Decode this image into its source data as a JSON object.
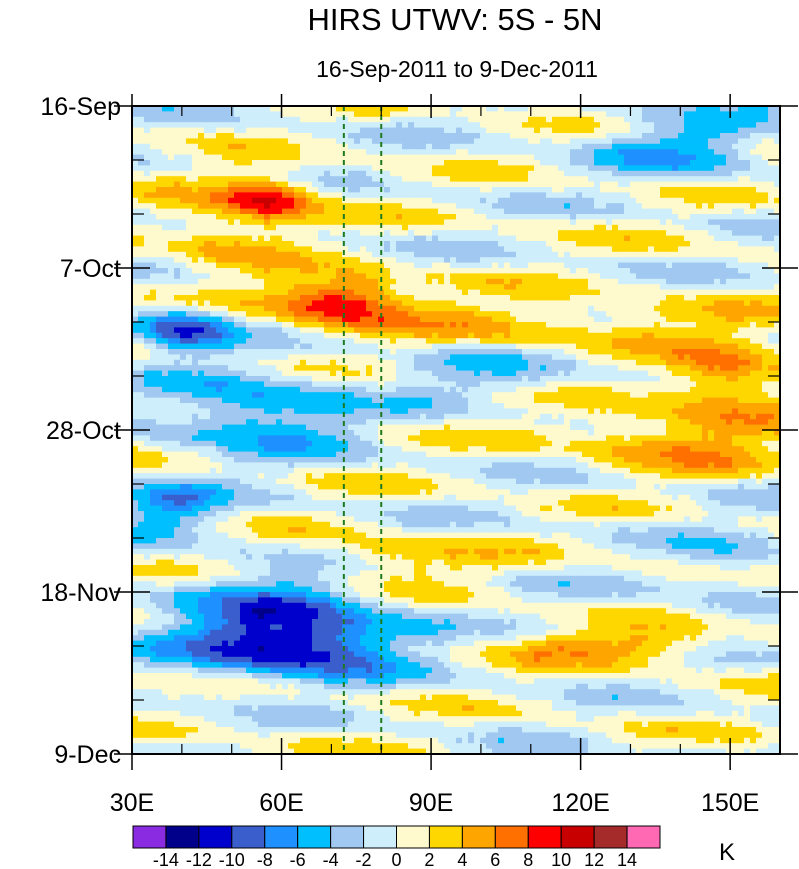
{
  "chart_data": {
    "type": "heatmap",
    "title": "HIRS UTWV: 5S - 5N",
    "subtitle": "16-Sep-2011 to 9-Dec-2011",
    "x_axis": {
      "range": [
        30,
        160
      ],
      "ticks": [
        30,
        60,
        90,
        120,
        150
      ],
      "tick_labels": [
        "30E",
        "60E",
        "90E",
        "120E",
        "150E"
      ]
    },
    "y_axis": {
      "range_days": [
        0,
        84
      ],
      "ticks_days": [
        0,
        21,
        42,
        63,
        84
      ],
      "tick_labels": [
        "16-Sep",
        "7-Oct",
        "28-Oct",
        "18-Nov",
        "9-Dec"
      ]
    },
    "reference_lines_x": [
      72.5,
      80
    ],
    "colorbar": {
      "unit": "K",
      "levels": [
        -14,
        -12,
        -10,
        -8,
        -6,
        -4,
        -2,
        0,
        2,
        4,
        6,
        8,
        10,
        12,
        14
      ],
      "level_labels": [
        "-14",
        "-12",
        "-10",
        "-8",
        "-6",
        "-4",
        "-2",
        "0",
        "2",
        "4",
        "6",
        "8",
        "10",
        "12",
        "14"
      ],
      "colors": [
        "#8a2be2",
        "#00008b",
        "#0000cd",
        "#3a5fcd",
        "#1e90ff",
        "#00bfff",
        "#a0c8f0",
        "#cdeefa",
        "#fffacd",
        "#ffd700",
        "#ffa500",
        "#ff7000",
        "#ff0000",
        "#c80000",
        "#a52a2a",
        "#ff69b4"
      ]
    },
    "anomaly_features": [
      {
        "lon_center": 58,
        "day_center": 12,
        "lon_halfwidth": 9,
        "day_halfwidth": 3,
        "value": 9
      },
      {
        "lon_center": 48,
        "day_center": 16,
        "lon_halfwidth": 12,
        "day_halfwidth": 6,
        "value": 4
      },
      {
        "lon_center": 72,
        "day_center": 25,
        "lon_halfwidth": 14,
        "day_halfwidth": 3,
        "value": 11
      },
      {
        "lon_center": 120,
        "day_center": 28,
        "lon_halfwidth": 45,
        "day_halfwidth": 3,
        "value": 4
      },
      {
        "lon_center": 150,
        "day_center": 35,
        "lon_halfwidth": 12,
        "day_halfwidth": 4,
        "value": 7
      },
      {
        "lon_center": 140,
        "day_center": 43,
        "lon_halfwidth": 22,
        "day_halfwidth": 4,
        "value": 6
      },
      {
        "lon_center": 80,
        "day_center": 59,
        "lon_halfwidth": 18,
        "day_halfwidth": 3,
        "value": 5
      },
      {
        "lon_center": 125,
        "day_center": 70,
        "lon_halfwidth": 25,
        "day_halfwidth": 2,
        "value": 6
      },
      {
        "lon_center": 40,
        "day_center": 29,
        "lon_halfwidth": 10,
        "day_halfwidth": 3,
        "value": -10
      },
      {
        "lon_center": 55,
        "day_center": 40,
        "lon_halfwidth": 18,
        "day_halfwidth": 5,
        "value": -7
      },
      {
        "lon_center": 62,
        "day_center": 70,
        "lon_halfwidth": 22,
        "day_halfwidth": 4,
        "value": -11
      },
      {
        "lon_center": 60,
        "day_center": 65,
        "lon_halfwidth": 20,
        "day_halfwidth": 6,
        "value": -6
      },
      {
        "lon_center": 140,
        "day_center": 5,
        "lon_halfwidth": 18,
        "day_halfwidth": 4,
        "value": -5
      },
      {
        "lon_center": 38,
        "day_center": 52,
        "lon_halfwidth": 10,
        "day_halfwidth": 3,
        "value": -7
      },
      {
        "lon_center": 150,
        "day_center": 60,
        "lon_halfwidth": 10,
        "day_halfwidth": 6,
        "value": -3
      },
      {
        "lon_center": 100,
        "day_center": 35,
        "lon_halfwidth": 20,
        "day_halfwidth": 3,
        "value": -3
      }
    ]
  }
}
